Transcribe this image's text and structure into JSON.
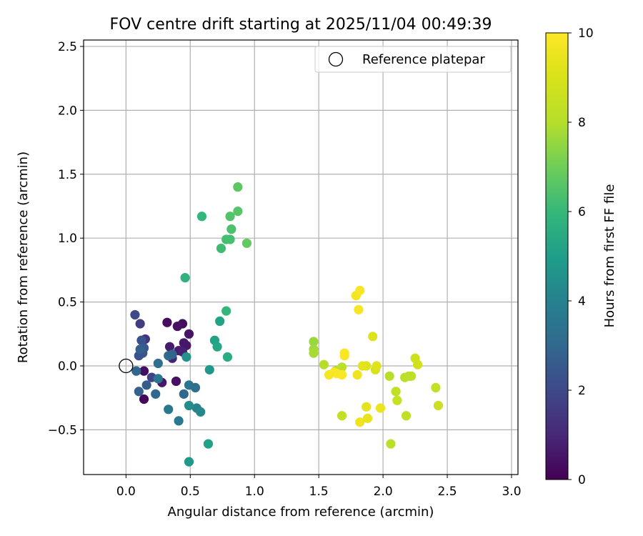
{
  "chart_data": {
    "type": "scatter",
    "title": "FOV centre drift starting at 2025/11/04 00:49:39",
    "xlabel": "Angular distance from reference (arcmin)",
    "ylabel": "Rotation from reference (arcmin)",
    "xlim": [
      -0.33,
      3.05
    ],
    "ylim": [
      -0.85,
      2.55
    ],
    "xticks": [
      0.0,
      0.5,
      1.0,
      1.5,
      2.0,
      2.5,
      3.0
    ],
    "xtick_labels": [
      "0.0",
      "0.5",
      "1.0",
      "1.5",
      "2.0",
      "2.5",
      "3.0"
    ],
    "yticks": [
      -0.5,
      0.0,
      0.5,
      1.0,
      1.5,
      2.0,
      2.5
    ],
    "ytick_labels": [
      "−0.5",
      "0.0",
      "0.5",
      "1.0",
      "1.5",
      "2.0",
      "2.5"
    ],
    "grid": true,
    "legend": {
      "position": "upper right",
      "entries": [
        "Reference platepar"
      ]
    },
    "reference_point": {
      "x": 0.0,
      "y": 0.0,
      "label": "Reference platepar"
    },
    "colorbar": {
      "label": "Hours from first FF file",
      "colormap": "viridis",
      "range": [
        0,
        10
      ],
      "ticks": [
        0,
        2,
        4,
        6,
        8,
        10
      ]
    },
    "points": [
      {
        "x": 0.32,
        "y": 0.34,
        "t": 0.3
      },
      {
        "x": 0.44,
        "y": 0.33,
        "t": 0.3
      },
      {
        "x": 0.4,
        "y": 0.31,
        "t": 0.4
      },
      {
        "x": 0.49,
        "y": 0.25,
        "t": 0.5
      },
      {
        "x": 0.45,
        "y": 0.18,
        "t": 0.6
      },
      {
        "x": 0.47,
        "y": 0.16,
        "t": 0.6
      },
      {
        "x": 0.34,
        "y": 0.15,
        "t": 0.7
      },
      {
        "x": 0.41,
        "y": 0.12,
        "t": 0.7
      },
      {
        "x": 0.44,
        "y": 0.11,
        "t": 0.8
      },
      {
        "x": 0.36,
        "y": 0.06,
        "t": 0.9
      },
      {
        "x": 0.14,
        "y": -0.04,
        "t": 0.3
      },
      {
        "x": 0.28,
        "y": -0.13,
        "t": 0.6
      },
      {
        "x": 0.39,
        "y": -0.12,
        "t": 0.4
      },
      {
        "x": 0.14,
        "y": -0.26,
        "t": 0.2
      },
      {
        "x": 0.15,
        "y": 0.21,
        "t": 1.3
      },
      {
        "x": 0.11,
        "y": 0.33,
        "t": 1.6
      },
      {
        "x": 0.07,
        "y": 0.4,
        "t": 2.0
      },
      {
        "x": 0.12,
        "y": 0.2,
        "t": 2.3
      },
      {
        "x": 0.13,
        "y": 0.1,
        "t": 2.4
      },
      {
        "x": 0.1,
        "y": 0.08,
        "t": 2.3
      },
      {
        "x": 0.14,
        "y": 0.14,
        "t": 2.5
      },
      {
        "x": 0.11,
        "y": 0.13,
        "t": 2.7
      },
      {
        "x": 0.08,
        "y": -0.04,
        "t": 2.9
      },
      {
        "x": 0.1,
        "y": -0.2,
        "t": 2.8
      },
      {
        "x": 0.16,
        "y": -0.15,
        "t": 2.6
      },
      {
        "x": 0.2,
        "y": -0.09,
        "t": 1.8
      },
      {
        "x": 0.23,
        "y": -0.22,
        "t": 3.0
      },
      {
        "x": 0.25,
        "y": -0.1,
        "t": 3.5
      },
      {
        "x": 0.25,
        "y": 0.02,
        "t": 3.3
      },
      {
        "x": 0.33,
        "y": 0.08,
        "t": 3.2
      },
      {
        "x": 0.36,
        "y": 0.09,
        "t": 2.9
      },
      {
        "x": 0.33,
        "y": -0.34,
        "t": 3.6
      },
      {
        "x": 0.41,
        "y": -0.43,
        "t": 3.7
      },
      {
        "x": 0.45,
        "y": -0.22,
        "t": 3.0
      },
      {
        "x": 0.49,
        "y": -0.15,
        "t": 3.5
      },
      {
        "x": 0.54,
        "y": -0.17,
        "t": 3.3
      },
      {
        "x": 0.55,
        "y": -0.33,
        "t": 4.0
      },
      {
        "x": 0.58,
        "y": -0.36,
        "t": 4.2
      },
      {
        "x": 0.49,
        "y": -0.31,
        "t": 4.4
      },
      {
        "x": 0.47,
        "y": 0.07,
        "t": 4.6
      },
      {
        "x": 0.65,
        "y": -0.03,
        "t": 4.7
      },
      {
        "x": 0.49,
        "y": -0.75,
        "t": 4.8
      },
      {
        "x": 0.64,
        "y": -0.61,
        "t": 5.1
      },
      {
        "x": 0.69,
        "y": 0.2,
        "t": 5.2
      },
      {
        "x": 0.71,
        "y": 0.15,
        "t": 5.3
      },
      {
        "x": 0.73,
        "y": 0.35,
        "t": 5.2
      },
      {
        "x": 0.79,
        "y": 0.07,
        "t": 5.5
      },
      {
        "x": 0.78,
        "y": 0.43,
        "t": 5.9
      },
      {
        "x": 0.46,
        "y": 0.69,
        "t": 5.8
      },
      {
        "x": 0.59,
        "y": 1.17,
        "t": 5.9
      },
      {
        "x": 0.74,
        "y": 0.92,
        "t": 6.2
      },
      {
        "x": 0.78,
        "y": 0.99,
        "t": 6.3
      },
      {
        "x": 0.81,
        "y": 0.99,
        "t": 6.3
      },
      {
        "x": 0.82,
        "y": 1.07,
        "t": 6.4
      },
      {
        "x": 0.81,
        "y": 1.17,
        "t": 6.5
      },
      {
        "x": 0.87,
        "y": 1.21,
        "t": 6.6
      },
      {
        "x": 0.87,
        "y": 1.4,
        "t": 6.7
      },
      {
        "x": 0.94,
        "y": 0.96,
        "t": 6.8
      },
      {
        "x": 1.46,
        "y": 0.19,
        "t": 7.6
      },
      {
        "x": 1.46,
        "y": 0.13,
        "t": 7.7
      },
      {
        "x": 1.46,
        "y": 0.1,
        "t": 7.8
      },
      {
        "x": 1.54,
        "y": 0.01,
        "t": 8.0
      },
      {
        "x": 1.63,
        "y": -0.04,
        "t": 8.1
      },
      {
        "x": 1.68,
        "y": -0.01,
        "t": 8.2
      },
      {
        "x": 1.68,
        "y": -0.39,
        "t": 8.4
      },
      {
        "x": 2.06,
        "y": -0.61,
        "t": 8.2
      },
      {
        "x": 2.05,
        "y": -0.08,
        "t": 8.1
      },
      {
        "x": 2.1,
        "y": -0.2,
        "t": 8.3
      },
      {
        "x": 2.11,
        "y": -0.27,
        "t": 8.5
      },
      {
        "x": 2.18,
        "y": -0.39,
        "t": 8.3
      },
      {
        "x": 2.17,
        "y": -0.09,
        "t": 8.2
      },
      {
        "x": 2.2,
        "y": -0.08,
        "t": 8.2
      },
      {
        "x": 2.22,
        "y": -0.08,
        "t": 8.2
      },
      {
        "x": 2.25,
        "y": 0.06,
        "t": 8.7
      },
      {
        "x": 2.27,
        "y": 0.01,
        "t": 8.8
      },
      {
        "x": 2.41,
        "y": -0.17,
        "t": 8.4
      },
      {
        "x": 2.43,
        "y": -0.31,
        "t": 8.6
      },
      {
        "x": 1.92,
        "y": 0.23,
        "t": 9.1
      },
      {
        "x": 1.94,
        "y": -0.03,
        "t": 9.0
      },
      {
        "x": 1.95,
        "y": 0.0,
        "t": 9.2
      },
      {
        "x": 1.87,
        "y": 0.0,
        "t": 9.2
      },
      {
        "x": 1.84,
        "y": 0.0,
        "t": 9.3
      },
      {
        "x": 1.87,
        "y": -0.32,
        "t": 9.3
      },
      {
        "x": 1.88,
        "y": -0.41,
        "t": 9.4
      },
      {
        "x": 1.98,
        "y": -0.33,
        "t": 9.5
      },
      {
        "x": 1.82,
        "y": -0.44,
        "t": 9.6
      },
      {
        "x": 1.8,
        "y": -0.07,
        "t": 9.6
      },
      {
        "x": 1.79,
        "y": 0.55,
        "t": 9.7
      },
      {
        "x": 1.82,
        "y": 0.59,
        "t": 9.8
      },
      {
        "x": 1.81,
        "y": 0.44,
        "t": 9.8
      },
      {
        "x": 1.7,
        "y": 0.1,
        "t": 9.9
      },
      {
        "x": 1.7,
        "y": 0.08,
        "t": 9.9
      },
      {
        "x": 1.68,
        "y": -0.07,
        "t": 9.9
      },
      {
        "x": 1.64,
        "y": -0.06,
        "t": 10.0
      },
      {
        "x": 1.62,
        "y": -0.05,
        "t": 9.9
      },
      {
        "x": 1.58,
        "y": -0.07,
        "t": 9.8
      }
    ]
  }
}
